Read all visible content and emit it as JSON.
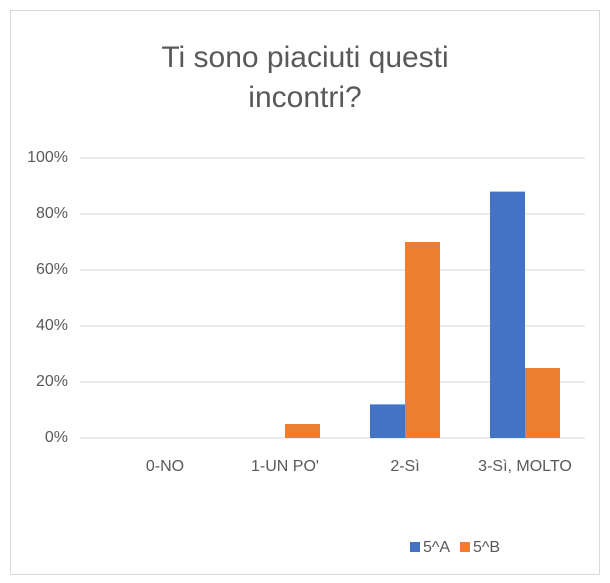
{
  "chart_data": {
    "type": "bar",
    "title": "Ti sono piaciuti questi incontri?",
    "categories": [
      "0-NO",
      "1-UN PO'",
      "2-Sì",
      "3-Sì, MOLTO"
    ],
    "series": [
      {
        "name": "5^A",
        "color": "#4472c4",
        "values": [
          0,
          0,
          12,
          88
        ]
      },
      {
        "name": "5^B",
        "color": "#ed7d31",
        "values": [
          0,
          5,
          70,
          25
        ]
      }
    ],
    "ylim": [
      0,
      100
    ],
    "yticks": [
      {
        "value": 0,
        "label": "0%"
      },
      {
        "value": 20,
        "label": "20%"
      },
      {
        "value": 40,
        "label": "40%"
      },
      {
        "value": 60,
        "label": "60%"
      },
      {
        "value": 80,
        "label": "80%"
      },
      {
        "value": 100,
        "label": "100%"
      }
    ],
    "grid": true,
    "legend": "bottom"
  }
}
